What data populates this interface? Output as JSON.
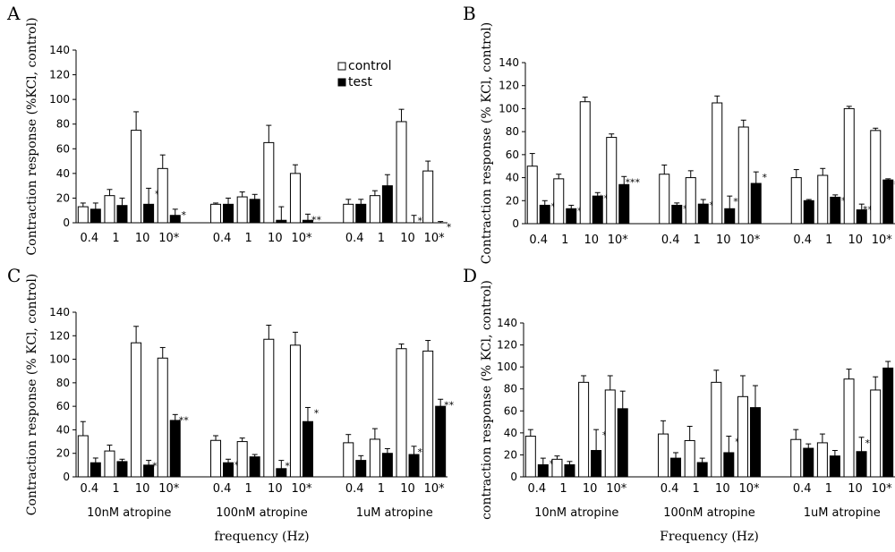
{
  "chart_data": [
    {
      "panel": "A",
      "type": "bar",
      "ylabel": "Contraction response (%KCl, control)",
      "xlabel": "",
      "ylim": [
        0,
        140
      ],
      "yticks": [
        0,
        20,
        40,
        60,
        80,
        100,
        120,
        140
      ],
      "categories": [
        "0.4",
        "1",
        "10",
        "10*",
        "0.4",
        "1",
        "10",
        "10*",
        "0.4",
        "1",
        "10",
        "10*"
      ],
      "groups": [],
      "legend": [
        "control",
        "test"
      ],
      "series": [
        {
          "name": "control",
          "values": [
            13,
            22,
            75,
            44,
            15,
            21,
            65,
            40,
            15,
            22,
            82,
            42
          ],
          "errors": [
            3,
            5,
            15,
            11,
            1,
            4,
            14,
            7,
            4,
            4,
            10,
            8
          ]
        },
        {
          "name": "test",
          "values": [
            11,
            14,
            15,
            6,
            15,
            19,
            2,
            2,
            15,
            30,
            0,
            0
          ],
          "errors": [
            5,
            6,
            13,
            5,
            5,
            4,
            11,
            5,
            4,
            9,
            6,
            1
          ]
        }
      ],
      "significance": [
        "",
        "",
        "*",
        "*",
        "",
        "",
        "",
        "**",
        "",
        "",
        "**",
        "*"
      ]
    },
    {
      "panel": "B",
      "type": "bar",
      "ylabel": "Contraction response (% KCl, control)",
      "xlabel": "",
      "ylim": [
        0,
        140
      ],
      "yticks": [
        0,
        20,
        40,
        60,
        80,
        100,
        120,
        140
      ],
      "categories": [
        "0.4",
        "1",
        "10",
        "10*",
        "0.4",
        "1",
        "10",
        "10*",
        "0.4",
        "1",
        "10",
        "10*"
      ],
      "groups": [],
      "legend": [],
      "series": [
        {
          "name": "control",
          "values": [
            50,
            39,
            106,
            75,
            43,
            40,
            105,
            84,
            40,
            42,
            100,
            81
          ],
          "errors": [
            11,
            4,
            4,
            3,
            8,
            6,
            6,
            6,
            7,
            6,
            2,
            2
          ]
        },
        {
          "name": "test",
          "values": [
            16,
            13,
            24,
            34,
            16,
            17,
            13,
            35,
            20,
            23,
            12,
            38
          ],
          "errors": [
            4,
            3,
            3,
            7,
            2,
            4,
            11,
            10,
            1,
            2,
            5,
            1
          ]
        }
      ],
      "significance": [
        "*",
        "*",
        "***",
        "***",
        "*",
        "*",
        "**",
        "*",
        "",
        "*",
        "***",
        "***"
      ]
    },
    {
      "panel": "C",
      "type": "bar",
      "ylabel": "Contraction response (% KCl, control)",
      "xlabel": "frequency (Hz)",
      "ylim": [
        0,
        140
      ],
      "yticks": [
        0,
        20,
        40,
        60,
        80,
        100,
        120,
        140
      ],
      "categories": [
        "0.4",
        "1",
        "10",
        "10*",
        "0.4",
        "1",
        "10",
        "10*",
        "0.4",
        "1",
        "10",
        "10*"
      ],
      "groups": [
        "10nM atropine",
        "100nM atropine",
        "1uM atropine"
      ],
      "legend": [],
      "series": [
        {
          "name": "control",
          "values": [
            35,
            22,
            114,
            101,
            31,
            30,
            117,
            112,
            29,
            32,
            109,
            107
          ],
          "errors": [
            12,
            5,
            14,
            9,
            4,
            3,
            12,
            11,
            7,
            9,
            4,
            9
          ]
        },
        {
          "name": "test",
          "values": [
            12,
            13,
            10,
            48,
            12,
            17,
            7,
            47,
            14,
            20,
            19,
            60
          ],
          "errors": [
            4,
            2,
            4,
            5,
            3,
            2,
            7,
            12,
            4,
            4,
            7,
            6
          ]
        }
      ],
      "significance": [
        "",
        "",
        "**",
        "**",
        "*",
        "",
        "**",
        "*",
        "",
        "",
        "**",
        "**"
      ]
    },
    {
      "panel": "D",
      "type": "bar",
      "ylabel": "contraction response (% KCl, control)",
      "xlabel": "Frequency (Hz)",
      "ylim": [
        0,
        140
      ],
      "yticks": [
        0,
        20,
        40,
        60,
        80,
        100,
        120,
        140
      ],
      "categories": [
        "0.4",
        "1",
        "10",
        "10*",
        "0.4",
        "1",
        "10",
        "10*",
        "0.4",
        "1",
        "10",
        "10*"
      ],
      "groups": [
        "10nM atropine",
        "100nM atropine",
        "1uM atropine"
      ],
      "legend": [],
      "series": [
        {
          "name": "control",
          "values": [
            37,
            16,
            86,
            79,
            39,
            33,
            86,
            73,
            34,
            31,
            89,
            79
          ],
          "errors": [
            6,
            3,
            6,
            13,
            12,
            13,
            11,
            19,
            9,
            8,
            9,
            12
          ]
        },
        {
          "name": "test",
          "values": [
            11,
            11,
            24,
            62,
            17,
            13,
            22,
            63,
            26,
            19,
            23,
            99
          ],
          "errors": [
            6,
            3,
            19,
            16,
            5,
            4,
            15,
            20,
            4,
            5,
            13,
            6
          ]
        }
      ],
      "significance": [
        "*",
        "",
        "*",
        "",
        "",
        "",
        "*",
        "",
        "",
        "",
        "**",
        ""
      ]
    }
  ]
}
